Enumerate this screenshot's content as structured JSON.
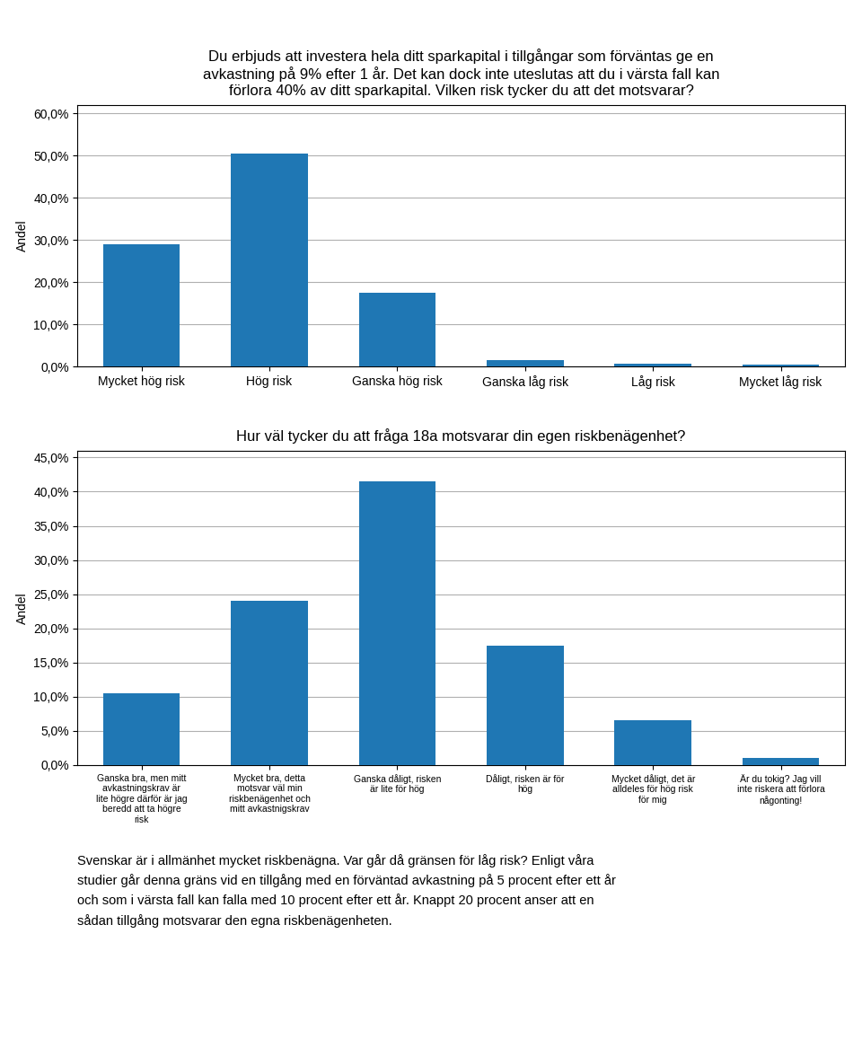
{
  "chart_data": [
    {
      "type": "bar",
      "title": "Du erbjuds att investera hela ditt sparkapital i tillgångar som förväntas ge en\navkastning på 9% efter 1 år. Det kan dock inte uteslutas att du i värsta fall kan\nförlora 40% av ditt sparkapital. Vilken risk tycker du att det motsvarar?",
      "categories": [
        "Mycket hög risk",
        "Hög risk",
        "Ganska hög risk",
        "Ganska låg risk",
        "Låg risk",
        "Mycket låg risk"
      ],
      "values": [
        29.0,
        50.5,
        17.5,
        1.5,
        0.7,
        0.5
      ],
      "ylabel": "Andel",
      "ylim": [
        0,
        62
      ],
      "yticks": [
        {
          "value": 0,
          "label": "0,0%"
        },
        {
          "value": 10,
          "label": "10,0%"
        },
        {
          "value": 20,
          "label": "20,0%"
        },
        {
          "value": 30,
          "label": "30,0%"
        },
        {
          "value": 40,
          "label": "40,0%"
        },
        {
          "value": 50,
          "label": "50,0%"
        },
        {
          "value": 60,
          "label": "60,0%"
        }
      ],
      "grid": "y"
    },
    {
      "type": "bar",
      "title": "Hur väl tycker du att fråga 18a motsvarar din egen riskbenägenhet?",
      "categories": [
        "Ganska bra, men mitt\navkastningskrav är\nlite högre därför är jag\nberedd att ta högre\nrisk",
        "Mycket bra, detta\nmotsvar väl min\nriskbenägenhet och\nmitt avkastnigskrav",
        "Ganska dåligt, risken\när lite för hög",
        "Dåligt, risken är för\nhög",
        "Mycket dåligt, det är\nalldeles för hög risk\nför mig",
        "Är du tokig? Jag vill\ninte riskera att förlora\nnågonting!"
      ],
      "values": [
        10.5,
        24.0,
        41.5,
        17.5,
        6.5,
        1.0
      ],
      "ylabel": "Andel",
      "ylim": [
        0,
        46
      ],
      "yticks": [
        {
          "value": 0,
          "label": "0,0%"
        },
        {
          "value": 5,
          "label": "5,0%"
        },
        {
          "value": 10,
          "label": "10,0%"
        },
        {
          "value": 15,
          "label": "15,0%"
        },
        {
          "value": 20,
          "label": "20,0%"
        },
        {
          "value": 25,
          "label": "25,0%"
        },
        {
          "value": 30,
          "label": "30,0%"
        },
        {
          "value": 35,
          "label": "35,0%"
        },
        {
          "value": 40,
          "label": "40,0%"
        },
        {
          "value": 45,
          "label": "45,0%"
        }
      ],
      "grid": "y",
      "annotations": [
        "Svenskar är i allmänhet mycket riskbenägna. Var går då gränsen för låg risk? Enligt våra\nstudier går denna gräns vid en tillgång med en förväntad avkastning på 5 procent efter ett år\noch som i värsta fall kan falla med 10 procent efter ett år. Knappt 20 procent anser att en\nsådan tillgång motsvarar den egna riskbenägenheten."
      ]
    }
  ]
}
